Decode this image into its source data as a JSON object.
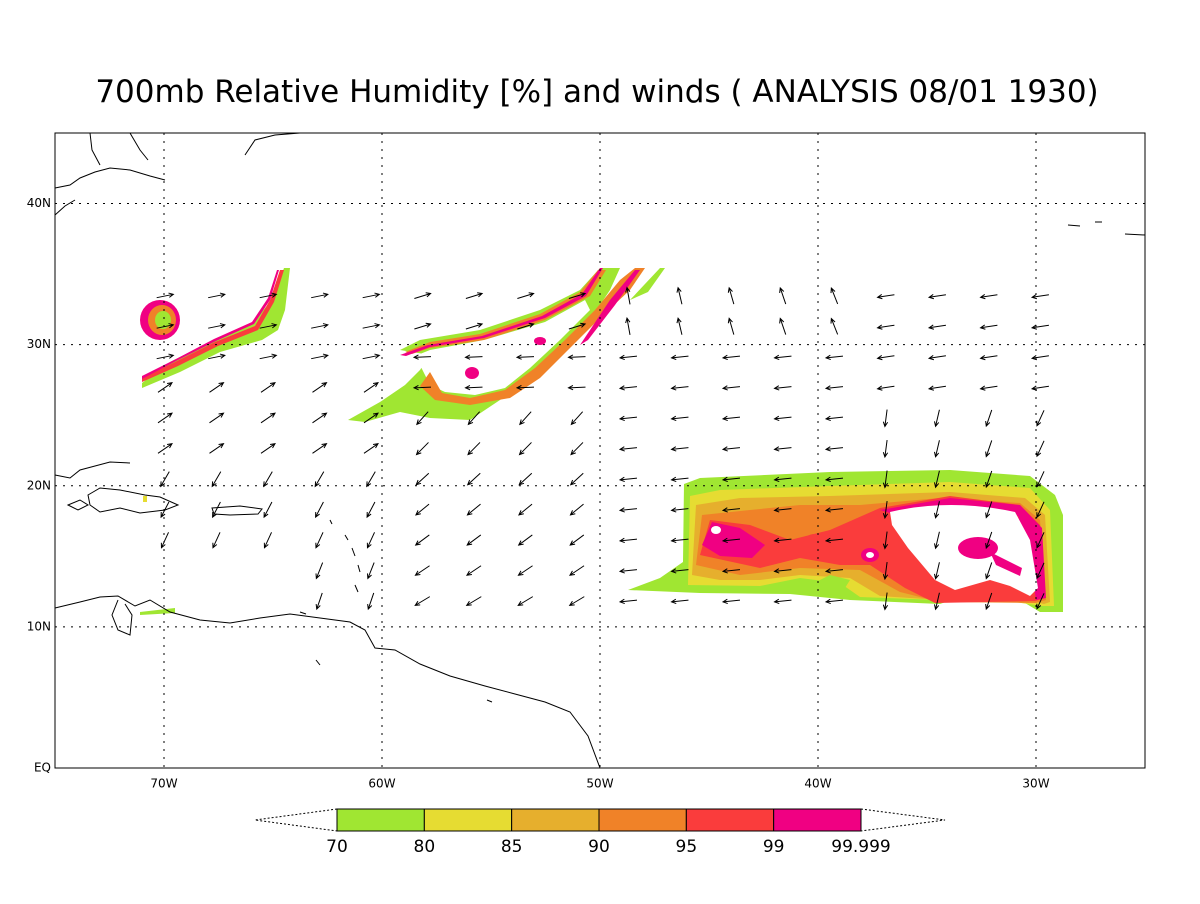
{
  "title": "700mb Relative Humidity [%] and winds ( ANALYSIS 08/01 1930)",
  "map": {
    "lon_range": [
      -75,
      -25
    ],
    "lat_range": [
      0,
      45
    ],
    "lon_ticks": [
      {
        "value": -70,
        "label": "70W"
      },
      {
        "value": -60,
        "label": "60W"
      },
      {
        "value": -50,
        "label": "50W"
      },
      {
        "value": -40,
        "label": "40W"
      },
      {
        "value": -30,
        "label": "30W"
      }
    ],
    "lat_ticks": [
      {
        "value": 0,
        "label": "EQ"
      },
      {
        "value": 10,
        "label": "10N"
      },
      {
        "value": 20,
        "label": "20N"
      },
      {
        "value": 30,
        "label": "30N"
      },
      {
        "value": 40,
        "label": "40N"
      }
    ],
    "grid": true
  },
  "colorbar": {
    "levels": [
      70,
      80,
      85,
      90,
      95,
      99,
      99.999
    ],
    "colors": [
      "#a0e632",
      "#e6dc32",
      "#e6af2d",
      "#f08228",
      "#fa3c3c",
      "#f00082"
    ]
  }
}
